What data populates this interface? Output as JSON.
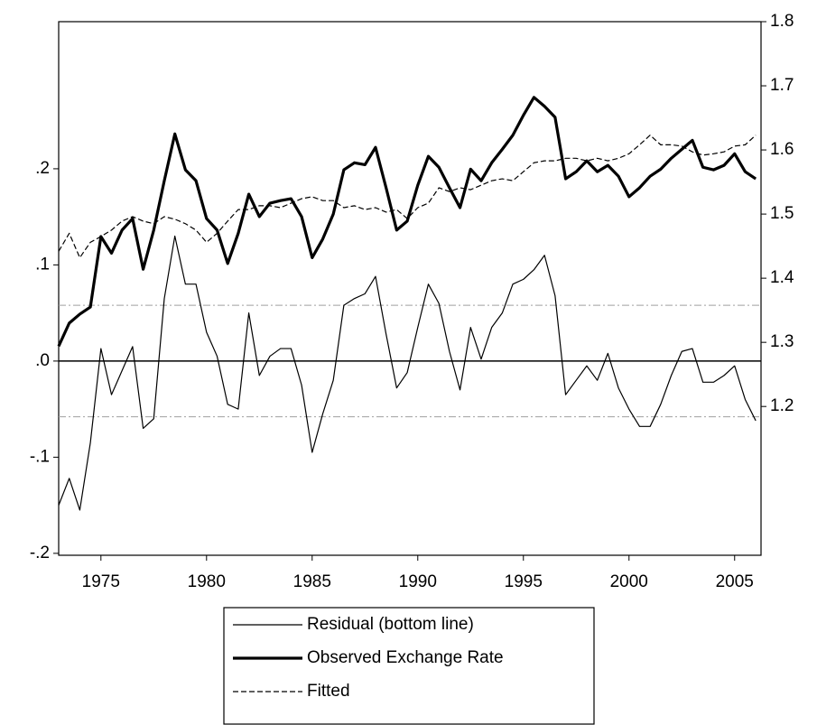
{
  "chart_data": {
    "type": "line",
    "x": [
      1973,
      1973.5,
      1974,
      1974.5,
      1975,
      1975.5,
      1976,
      1976.5,
      1977,
      1977.5,
      1978,
      1978.5,
      1979,
      1979.5,
      1980,
      1980.5,
      1981,
      1981.5,
      1982,
      1982.5,
      1983,
      1983.5,
      1984,
      1984.5,
      1985,
      1985.5,
      1986,
      1986.5,
      1987,
      1987.5,
      1988,
      1988.5,
      1989,
      1989.5,
      1990,
      1990.5,
      1991,
      1991.5,
      1992,
      1992.5,
      1993,
      1993.5,
      1994,
      1994.5,
      1995,
      1995.5,
      1996,
      1996.5,
      1997,
      1997.5,
      1998,
      1998.5,
      1999,
      1999.5,
      2000,
      2000.5,
      2001,
      2001.5,
      2002,
      2002.5,
      2003,
      2003.5,
      2004,
      2004.5,
      2005,
      2005.5,
      2006
    ],
    "series": [
      {
        "name": "Residual (bottom line)",
        "color": "#000000",
        "line_width": 1.2,
        "dash": false,
        "axis": "y",
        "values": [
          -0.15,
          -0.122,
          -0.155,
          -0.085,
          0.013,
          -0.035,
          -0.01,
          0.015,
          -0.07,
          -0.06,
          0.065,
          0.13,
          0.08,
          0.08,
          0.03,
          0.005,
          -0.045,
          -0.05,
          0.05,
          -0.015,
          0.005,
          0.013,
          0.013,
          -0.025,
          -0.095,
          -0.055,
          -0.02,
          0.058,
          0.065,
          0.07,
          0.088,
          0.028,
          -0.028,
          -0.012,
          0.035,
          0.08,
          0.06,
          0.01,
          -0.03,
          0.035,
          0.002,
          0.035,
          0.05,
          0.08,
          0.085,
          0.095,
          0.11,
          0.068,
          -0.035,
          -0.02,
          -0.005,
          -0.02,
          0.008,
          -0.028,
          -0.05,
          -0.068,
          -0.068,
          -0.045,
          -0.015,
          0.01,
          0.013,
          -0.022,
          -0.022,
          -0.015,
          -0.005,
          -0.04,
          -0.062
        ]
      },
      {
        "name": "Observed Exchange Rate",
        "color": "#000000",
        "line_width": 3.2,
        "dash": false,
        "axis": "y2",
        "values": [
          1.294,
          1.33,
          1.344,
          1.355,
          1.465,
          1.439,
          1.475,
          1.493,
          1.414,
          1.475,
          1.552,
          1.625,
          1.569,
          1.552,
          1.493,
          1.475,
          1.423,
          1.47,
          1.531,
          1.496,
          1.517,
          1.521,
          1.524,
          1.496,
          1.432,
          1.461,
          1.5,
          1.569,
          1.58,
          1.577,
          1.604,
          1.541,
          1.475,
          1.489,
          1.545,
          1.59,
          1.573,
          1.541,
          1.51,
          1.57,
          1.552,
          1.58,
          1.601,
          1.623,
          1.654,
          1.682,
          1.668,
          1.651,
          1.555,
          1.566,
          1.583,
          1.566,
          1.576,
          1.559,
          1.527,
          1.541,
          1.559,
          1.57,
          1.587,
          1.601,
          1.615,
          1.573,
          1.569,
          1.576,
          1.594,
          1.566,
          1.555
        ]
      },
      {
        "name": "Fitted",
        "color": "#000000",
        "line_width": 1.2,
        "dash": true,
        "axis": "y2",
        "values": [
          1.442,
          1.47,
          1.432,
          1.456,
          1.465,
          1.475,
          1.489,
          1.496,
          1.489,
          1.485,
          1.496,
          1.492,
          1.485,
          1.475,
          1.456,
          1.47,
          1.489,
          1.507,
          1.507,
          1.513,
          1.513,
          1.51,
          1.517,
          1.524,
          1.527,
          1.521,
          1.521,
          1.51,
          1.513,
          1.507,
          1.51,
          1.503,
          1.507,
          1.493,
          1.51,
          1.517,
          1.541,
          1.535,
          1.541,
          1.538,
          1.545,
          1.552,
          1.555,
          1.552,
          1.566,
          1.58,
          1.583,
          1.583,
          1.587,
          1.587,
          1.583,
          1.587,
          1.583,
          1.587,
          1.594,
          1.608,
          1.623,
          1.608,
          1.608,
          1.606,
          1.597,
          1.592,
          1.594,
          1.597,
          1.606,
          1.608,
          1.623
        ]
      }
    ],
    "xlim": [
      1973,
      2006.25
    ],
    "xticks": [
      1975,
      1980,
      1985,
      1990,
      1995,
      2000,
      2005
    ],
    "ylim": [
      -0.202,
      0.353
    ],
    "yticks": [
      {
        "value": -0.2,
        "label": "-.2"
      },
      {
        "value": -0.1,
        "label": "-.1"
      },
      {
        "value": 0,
        "label": ".0"
      },
      {
        "value": 0.1,
        "label": ".1"
      },
      {
        "value": 0.2,
        "label": ".2"
      }
    ],
    "y2lim": [
      0.968,
      1.8
    ],
    "y2ticks": [
      1.2,
      1.3,
      1.4,
      1.5,
      1.6,
      1.7,
      1.8
    ],
    "reference_lines": [
      {
        "value": 0.058,
        "dash": true,
        "color": "#a0a0a0"
      },
      {
        "value": 0,
        "dash": false,
        "color": "#000000"
      },
      {
        "value": -0.058,
        "dash": true,
        "color": "#a0a0a0"
      }
    ]
  }
}
